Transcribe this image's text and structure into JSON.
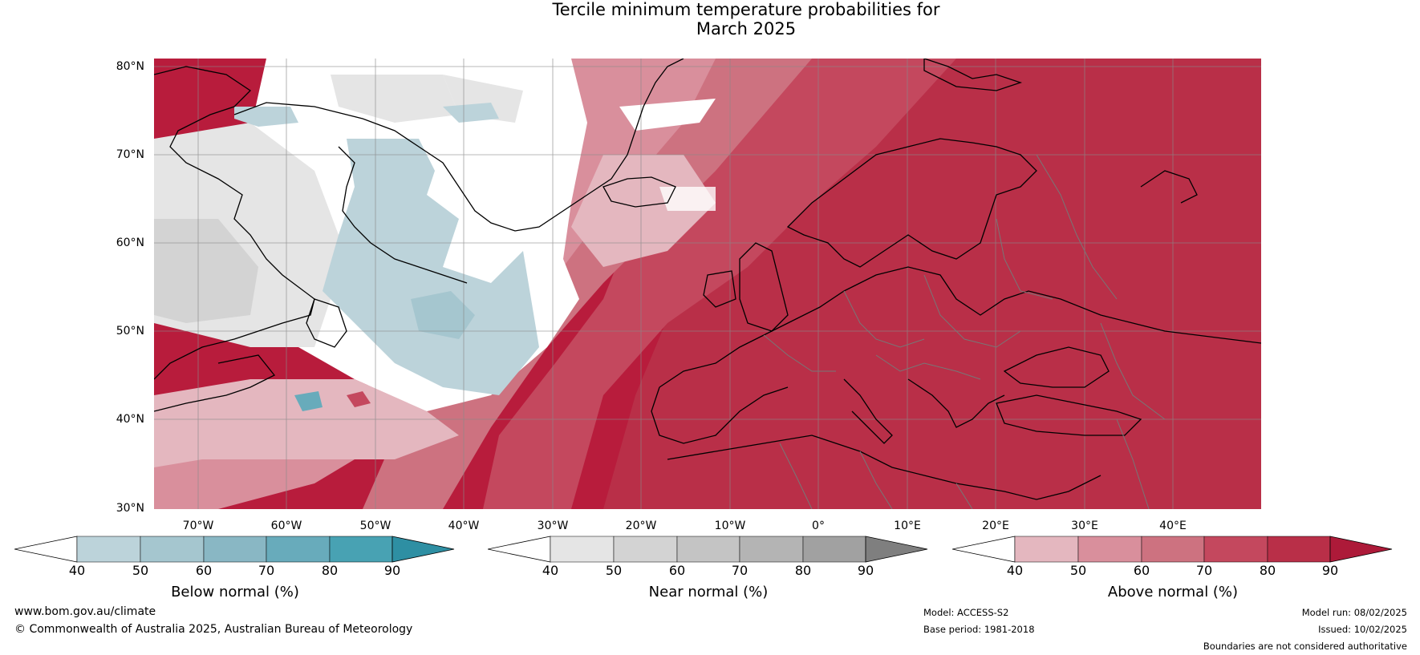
{
  "title": {
    "line1": "Tercile minimum temperature probabilities for",
    "line2": "March 2025"
  },
  "axes": {
    "latitudes": [
      "80°N",
      "70°N",
      "60°N",
      "50°N",
      "40°N",
      "30°N"
    ],
    "longitudes": [
      "70°W",
      "60°W",
      "50°W",
      "40°W",
      "30°W",
      "20°W",
      "10°W",
      "0°",
      "10°E",
      "20°E",
      "30°E",
      "40°E"
    ],
    "lat_range": [
      30,
      81
    ],
    "lon_range": [
      -75,
      50
    ]
  },
  "legend": {
    "below": {
      "label": "Below normal (%)",
      "ticks": [
        "40",
        "50",
        "60",
        "70",
        "80",
        "90"
      ],
      "colors": [
        "#ffffff",
        "#bcd3da",
        "#a5c6cf",
        "#89b7c4",
        "#68abbb",
        "#48a2b3",
        "#2e8fa3"
      ]
    },
    "near": {
      "label": "Near normal (%)",
      "ticks": [
        "40",
        "50",
        "60",
        "70",
        "80",
        "90"
      ],
      "colors": [
        "#ffffff",
        "#e5e5e5",
        "#d3d3d3",
        "#c4c4c4",
        "#b4b4b4",
        "#a1a1a1",
        "#7f7f7f"
      ]
    },
    "above": {
      "label": "Above normal (%)",
      "ticks": [
        "40",
        "50",
        "60",
        "70",
        "80",
        "90"
      ],
      "colors": [
        "#ffffff",
        "#e4b7bf",
        "#d98f9c",
        "#cd7280",
        "#c4485e",
        "#b92f48",
        "#ad1a39"
      ]
    }
  },
  "footer": {
    "website": "www.bom.gov.au/climate",
    "copyright": "© Commonwealth of Australia 2025, Australian Bureau of Meteorology",
    "model": "Model: ACCESS-S2",
    "base_period": "Base period: 1981-2018",
    "model_run": "Model run: 08/02/2025",
    "issued": "Issued: 10/02/2025",
    "disclaimer": "Boundaries are not considered authoritative"
  }
}
